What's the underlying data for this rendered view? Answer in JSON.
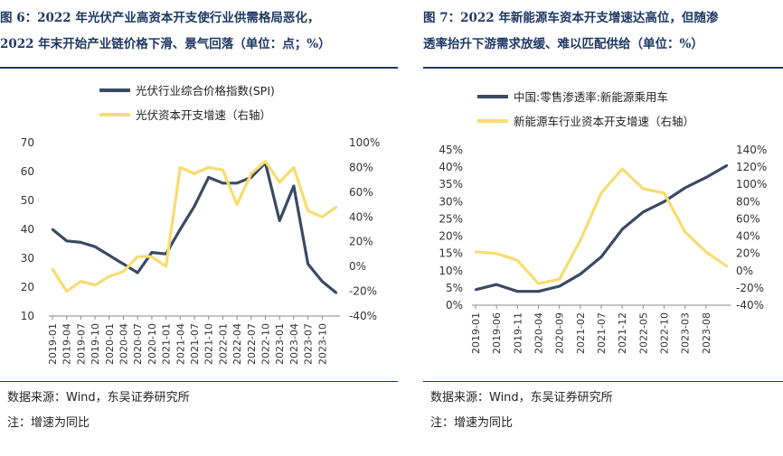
{
  "left": {
    "title_line1": "图 6：2022 年光伏产业高资本开支使行业供需格局恶化，",
    "title_line2": "2022 年末开始产业链价格下滑、景气回落（单位：点；%）",
    "source": "数据来源：Wind，东吴证券研究所",
    "note": "注：增速为同比"
  },
  "right": {
    "title_line1": "图 7：2022 年新能源车资本开支增速达高位，但随渗",
    "title_line2": "透率抬升下游需求放缓、难以匹配供给（单位：%）",
    "source": "数据来源：Wind，东吴证券研究所",
    "note": "注：增速为同比"
  },
  "colors": {
    "navy": "#3a4a63",
    "yellow": "#f7dc6f",
    "title": "#1f3864"
  },
  "chart_data": [
    {
      "type": "line",
      "x": [
        "2019-01",
        "2019-04",
        "2019-07",
        "2019-10",
        "2020-01",
        "2020-04",
        "2020-07",
        "2020-10",
        "2021-01",
        "2021-04",
        "2021-07",
        "2021-10",
        "2022-01",
        "2022-04",
        "2022-07",
        "2022-10",
        "2023-01",
        "2023-04",
        "2023-07",
        "2023-10",
        "2024-01"
      ],
      "xticks": [
        "2019-01",
        "2019-04",
        "2019-07",
        "2019-10",
        "2020-01",
        "2020-04",
        "2020-07",
        "2020-10",
        "2021-01",
        "2021-04",
        "2021-07",
        "2021-10",
        "2022-01",
        "2022-04",
        "2022-07",
        "2022-10",
        "2023-01",
        "2023-04",
        "2023-07",
        "2023-10"
      ],
      "ylim": [
        10,
        70
      ],
      "yticks": [
        "10",
        "20",
        "30",
        "40",
        "50",
        "60",
        "70"
      ],
      "y2lim": [
        -40,
        100
      ],
      "y2ticks": [
        "-40%",
        "-20%",
        "0%",
        "20%",
        "40%",
        "60%",
        "80%",
        "100%"
      ],
      "legend": "top",
      "series": [
        {
          "name": "光伏行业综合价格指数(SPI)",
          "axis": "left",
          "values": [
            40,
            36,
            35.5,
            34,
            31,
            28,
            25,
            32,
            31.5,
            40,
            48,
            58,
            56,
            56,
            58,
            63,
            43,
            55,
            28,
            22,
            18
          ]
        },
        {
          "name": "光伏资本开支增速（右轴）",
          "axis": "right",
          "values": [
            -2,
            -20,
            -12,
            -15,
            -8,
            -4,
            8,
            8,
            0,
            80,
            75,
            80,
            78,
            50,
            75,
            85,
            68,
            80,
            45,
            40,
            48
          ]
        }
      ]
    },
    {
      "type": "line",
      "x": [
        "2019-01",
        "2019-06",
        "2019-11",
        "2020-04",
        "2020-09",
        "2021-02",
        "2021-07",
        "2021-12",
        "2022-05",
        "2022-10",
        "2023-03",
        "2023-08",
        "2024-01"
      ],
      "xticks": [
        "2019-01",
        "2019-06",
        "2019-11",
        "2020-04",
        "2020-09",
        "2021-02",
        "2021-07",
        "2021-12",
        "2022-05",
        "2022-10",
        "2023-03",
        "2023-08"
      ],
      "ylim": [
        0,
        45
      ],
      "yticks": [
        "0%",
        "5%",
        "10%",
        "15%",
        "20%",
        "25%",
        "30%",
        "35%",
        "40%",
        "45%"
      ],
      "y2lim": [
        -40,
        140
      ],
      "y2ticks": [
        "-40%",
        "-20%",
        "0%",
        "20%",
        "40%",
        "60%",
        "80%",
        "100%",
        "120%",
        "140%"
      ],
      "legend": "top",
      "series": [
        {
          "name": "中国:零售渗透率:新能源乘用车",
          "axis": "left",
          "values": [
            4.5,
            6,
            4,
            4,
            5.5,
            9,
            14,
            22,
            27,
            30,
            34,
            37,
            40.5
          ]
        },
        {
          "name": "新能源车行业资本开支增速（右轴）",
          "axis": "right",
          "values": [
            22,
            20,
            12,
            -15,
            -10,
            35,
            90,
            118,
            95,
            90,
            45,
            22,
            5
          ]
        }
      ]
    }
  ]
}
